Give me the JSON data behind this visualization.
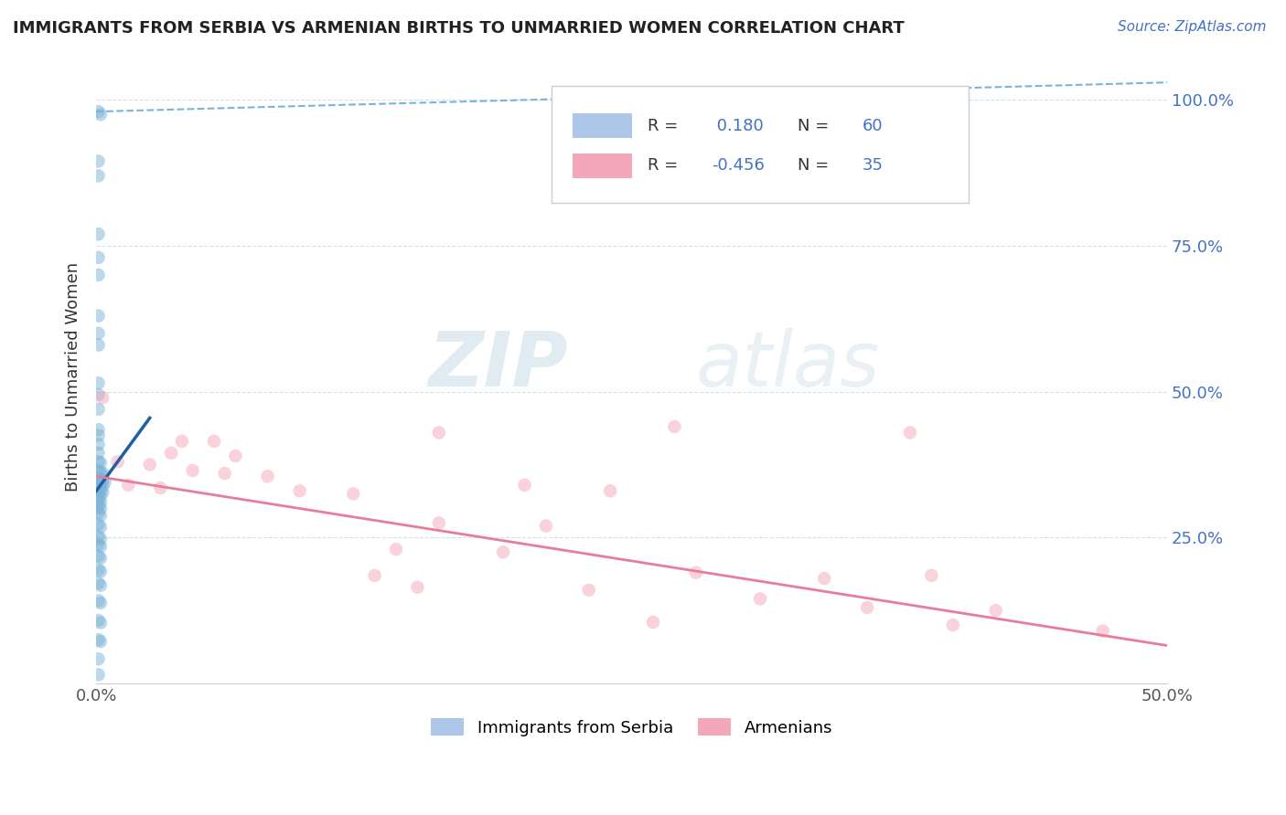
{
  "title": "IMMIGRANTS FROM SERBIA VS ARMENIAN BIRTHS TO UNMARRIED WOMEN CORRELATION CHART",
  "source": "Source: ZipAtlas.com",
  "ylabel_label": "Births to Unmarried Women",
  "legend_R1": " 0.180",
  "legend_N1": "60",
  "legend_R2": "-0.456",
  "legend_N2": "35",
  "blue_scatter": [
    [
      0.001,
      0.98
    ],
    [
      0.002,
      0.975
    ],
    [
      0.001,
      0.895
    ],
    [
      0.001,
      0.87
    ],
    [
      0.001,
      0.77
    ],
    [
      0.001,
      0.73
    ],
    [
      0.001,
      0.7
    ],
    [
      0.001,
      0.63
    ],
    [
      0.001,
      0.6
    ],
    [
      0.001,
      0.58
    ],
    [
      0.001,
      0.515
    ],
    [
      0.001,
      0.495
    ],
    [
      0.001,
      0.47
    ],
    [
      0.001,
      0.435
    ],
    [
      0.001,
      0.425
    ],
    [
      0.001,
      0.41
    ],
    [
      0.001,
      0.395
    ],
    [
      0.001,
      0.38
    ],
    [
      0.002,
      0.378
    ],
    [
      0.001,
      0.365
    ],
    [
      0.002,
      0.362
    ],
    [
      0.003,
      0.36
    ],
    [
      0.001,
      0.352
    ],
    [
      0.002,
      0.35
    ],
    [
      0.003,
      0.348
    ],
    [
      0.004,
      0.345
    ],
    [
      0.001,
      0.342
    ],
    [
      0.002,
      0.34
    ],
    [
      0.003,
      0.338
    ],
    [
      0.001,
      0.332
    ],
    [
      0.002,
      0.33
    ],
    [
      0.003,
      0.328
    ],
    [
      0.001,
      0.322
    ],
    [
      0.002,
      0.32
    ],
    [
      0.001,
      0.312
    ],
    [
      0.002,
      0.31
    ],
    [
      0.001,
      0.302
    ],
    [
      0.002,
      0.3
    ],
    [
      0.001,
      0.292
    ],
    [
      0.002,
      0.288
    ],
    [
      0.001,
      0.272
    ],
    [
      0.002,
      0.268
    ],
    [
      0.001,
      0.252
    ],
    [
      0.002,
      0.248
    ],
    [
      0.001,
      0.238
    ],
    [
      0.002,
      0.235
    ],
    [
      0.001,
      0.218
    ],
    [
      0.002,
      0.215
    ],
    [
      0.001,
      0.195
    ],
    [
      0.002,
      0.192
    ],
    [
      0.001,
      0.172
    ],
    [
      0.002,
      0.168
    ],
    [
      0.001,
      0.142
    ],
    [
      0.002,
      0.138
    ],
    [
      0.001,
      0.108
    ],
    [
      0.002,
      0.104
    ],
    [
      0.001,
      0.075
    ],
    [
      0.002,
      0.072
    ],
    [
      0.001,
      0.042
    ],
    [
      0.001,
      0.015
    ]
  ],
  "pink_scatter": [
    [
      0.003,
      0.49
    ],
    [
      0.04,
      0.415
    ],
    [
      0.055,
      0.415
    ],
    [
      0.035,
      0.395
    ],
    [
      0.065,
      0.39
    ],
    [
      0.01,
      0.38
    ],
    [
      0.025,
      0.375
    ],
    [
      0.045,
      0.365
    ],
    [
      0.06,
      0.36
    ],
    [
      0.08,
      0.355
    ],
    [
      0.015,
      0.34
    ],
    [
      0.03,
      0.335
    ],
    [
      0.095,
      0.33
    ],
    [
      0.12,
      0.325
    ],
    [
      0.16,
      0.43
    ],
    [
      0.27,
      0.44
    ],
    [
      0.38,
      0.43
    ],
    [
      0.2,
      0.34
    ],
    [
      0.24,
      0.33
    ],
    [
      0.16,
      0.275
    ],
    [
      0.21,
      0.27
    ],
    [
      0.14,
      0.23
    ],
    [
      0.19,
      0.225
    ],
    [
      0.13,
      0.185
    ],
    [
      0.28,
      0.19
    ],
    [
      0.34,
      0.18
    ],
    [
      0.39,
      0.185
    ],
    [
      0.15,
      0.165
    ],
    [
      0.23,
      0.16
    ],
    [
      0.31,
      0.145
    ],
    [
      0.36,
      0.13
    ],
    [
      0.42,
      0.125
    ],
    [
      0.26,
      0.105
    ],
    [
      0.4,
      0.1
    ],
    [
      0.47,
      0.09
    ]
  ],
  "blue_solid_line": {
    "x0": 0.0,
    "y0": 0.33,
    "x1": 0.025,
    "y1": 0.455
  },
  "blue_dashed_line": {
    "x0": 0.0,
    "y0": 0.98,
    "x1": 0.5,
    "y1": 1.03
  },
  "pink_line": {
    "x0": 0.0,
    "y0": 0.355,
    "x1": 0.5,
    "y1": 0.065
  },
  "scatter_size": 110,
  "scatter_alpha": 0.5,
  "blue_scatter_color": "#7ab3d9",
  "pink_scatter_color": "#f4a7b9",
  "blue_line_color": "#2060a0",
  "blue_dashed_color": "#7ab3d9",
  "pink_line_color": "#e87d9a",
  "watermark_zip": "ZIP",
  "watermark_atlas": "atlas",
  "xmin": 0.0,
  "xmax": 0.5,
  "ymin": 0.0,
  "ymax": 1.05,
  "yticks": [
    0.25,
    0.5,
    0.75,
    1.0
  ],
  "ytick_labels": [
    "25.0%",
    "50.0%",
    "75.0%",
    "100.0%"
  ],
  "xticks": [
    0.0,
    0.5
  ],
  "xtick_labels": [
    "0.0%",
    "50.0%"
  ],
  "grid_color": "#c8dff0",
  "grid_style": "--",
  "title_color": "#222222",
  "source_color": "#4472c4",
  "tick_color": "#4472c4",
  "legend_blue_color": "#aec6e8",
  "legend_pink_color": "#f4a7b9",
  "legend_text_color_dark": "#333333",
  "legend_text_color_blue": "#4472c4"
}
